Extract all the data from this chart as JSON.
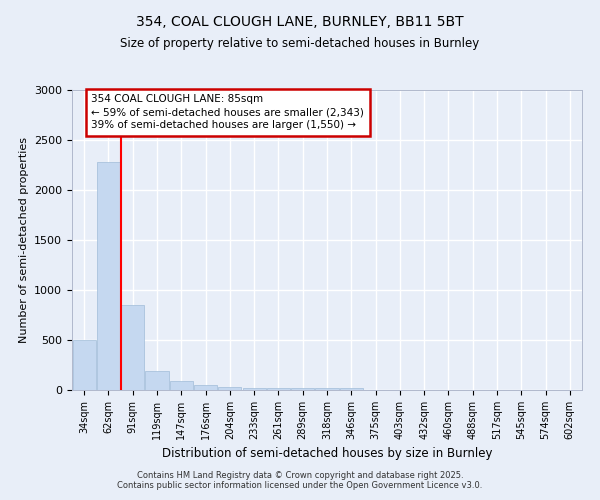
{
  "title1": "354, COAL CLOUGH LANE, BURNLEY, BB11 5BT",
  "title2": "Size of property relative to semi-detached houses in Burnley",
  "xlabel": "Distribution of semi-detached houses by size in Burnley",
  "ylabel": "Number of semi-detached properties",
  "categories": [
    "34sqm",
    "62sqm",
    "91sqm",
    "119sqm",
    "147sqm",
    "176sqm",
    "204sqm",
    "233sqm",
    "261sqm",
    "289sqm",
    "318sqm",
    "346sqm",
    "375sqm",
    "403sqm",
    "432sqm",
    "460sqm",
    "488sqm",
    "517sqm",
    "545sqm",
    "574sqm",
    "602sqm"
  ],
  "values": [
    500,
    2280,
    850,
    190,
    90,
    50,
    35,
    20,
    20,
    20,
    20,
    20,
    5,
    0,
    0,
    0,
    0,
    0,
    0,
    0,
    0
  ],
  "bar_color": "#c5d8f0",
  "bar_edge_color": "#a0bcd8",
  "bg_color": "#e8eef8",
  "grid_color": "#ffffff",
  "annotation_title": "354 COAL CLOUGH LANE: 85sqm",
  "annotation_line1": "← 59% of semi-detached houses are smaller (2,343)",
  "annotation_line2": "39% of semi-detached houses are larger (1,550) →",
  "annotation_box_color": "#ffffff",
  "annotation_box_edge": "#cc0000",
  "ylim": [
    0,
    3000
  ],
  "yticks": [
    0,
    500,
    1000,
    1500,
    2000,
    2500,
    3000
  ],
  "red_line_x": 1.5,
  "footer1": "Contains HM Land Registry data © Crown copyright and database right 2025.",
  "footer2": "Contains public sector information licensed under the Open Government Licence v3.0."
}
